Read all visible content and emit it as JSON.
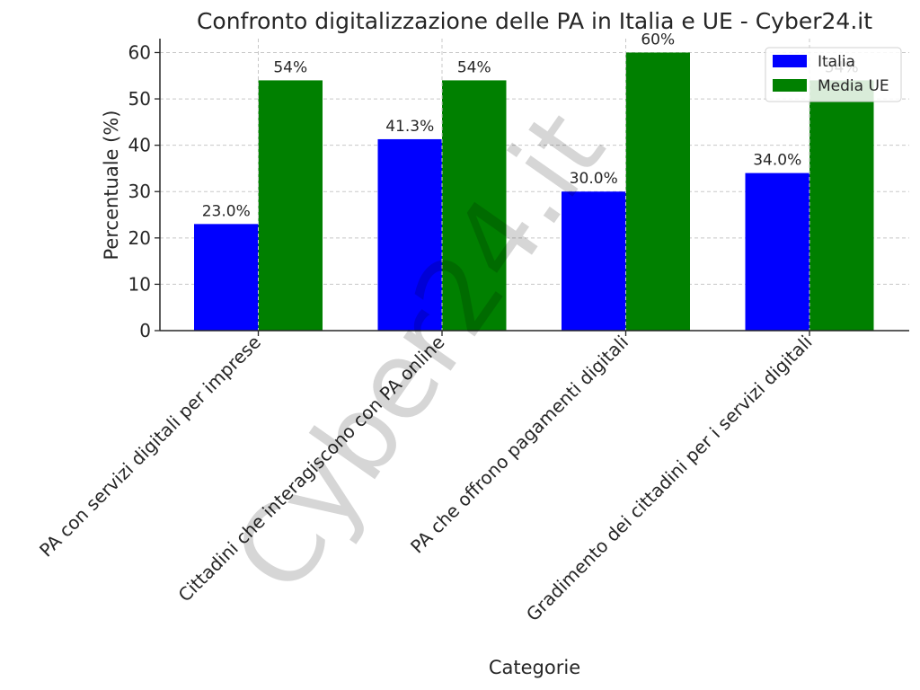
{
  "chart_data": {
    "type": "bar",
    "title": "Confronto digitalizzazione delle PA in Italia e UE - Cyber24.it",
    "xlabel": "Categorie",
    "ylabel": "Percentuale (%)",
    "ylim": [
      0,
      63
    ],
    "yticks": [
      0,
      10,
      20,
      30,
      40,
      50,
      60
    ],
    "grid": true,
    "legend_position": "top-right",
    "categories": [
      "PA con servizi digitali per imprese",
      "Cittadini che interagiscono con PA online",
      "PA che offrono pagamenti digitali",
      "Gradimento dei cittadini per i servizi digitali"
    ],
    "series": [
      {
        "name": "Italia",
        "color": "#0000ff",
        "values": [
          23.0,
          41.3,
          30.0,
          34.0
        ],
        "labels": [
          "23.0%",
          "41.3%",
          "30.0%",
          "34.0%"
        ]
      },
      {
        "name": "Media UE",
        "color": "#008000",
        "values": [
          54,
          54,
          60,
          54
        ],
        "labels": [
          "54%",
          "54%",
          "60%",
          "54%"
        ]
      }
    ],
    "watermark": "Cyber24.it"
  }
}
